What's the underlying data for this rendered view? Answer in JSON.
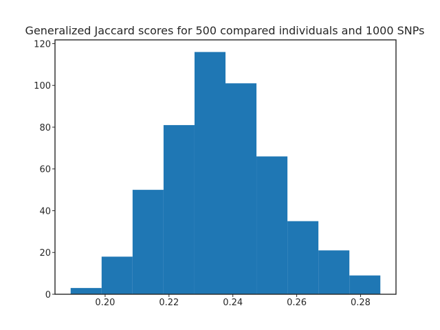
{
  "chart_data": {
    "type": "bar",
    "title": "Generalized Jaccard scores for 500 compared individuals and 1000 SNPs",
    "xlabel": "",
    "ylabel": "",
    "bins": [
      {
        "start": 0.1892,
        "end": 0.1989,
        "count": 3
      },
      {
        "start": 0.1989,
        "end": 0.2086,
        "count": 18
      },
      {
        "start": 0.2086,
        "end": 0.2183,
        "count": 50
      },
      {
        "start": 0.2183,
        "end": 0.228,
        "count": 81
      },
      {
        "start": 0.228,
        "end": 0.2377,
        "count": 116
      },
      {
        "start": 0.2377,
        "end": 0.2474,
        "count": 101
      },
      {
        "start": 0.2474,
        "end": 0.2571,
        "count": 66
      },
      {
        "start": 0.2571,
        "end": 0.2668,
        "count": 35
      },
      {
        "start": 0.2668,
        "end": 0.2765,
        "count": 21
      },
      {
        "start": 0.2765,
        "end": 0.2862,
        "count": 9
      }
    ],
    "xlim": [
      0.1843,
      0.2911
    ],
    "ylim": [
      0,
      121.8
    ],
    "xticks": [
      {
        "value": 0.2,
        "label": "0.20"
      },
      {
        "value": 0.22,
        "label": "0.22"
      },
      {
        "value": 0.24,
        "label": "0.24"
      },
      {
        "value": 0.26,
        "label": "0.26"
      },
      {
        "value": 0.28,
        "label": "0.28"
      }
    ],
    "yticks": [
      {
        "value": 0,
        "label": "0"
      },
      {
        "value": 20,
        "label": "20"
      },
      {
        "value": 40,
        "label": "40"
      },
      {
        "value": 60,
        "label": "60"
      },
      {
        "value": 80,
        "label": "80"
      },
      {
        "value": 100,
        "label": "100"
      },
      {
        "value": 120,
        "label": "120"
      }
    ],
    "bar_color": "#1f77b4",
    "grid": false,
    "legend": "none"
  }
}
